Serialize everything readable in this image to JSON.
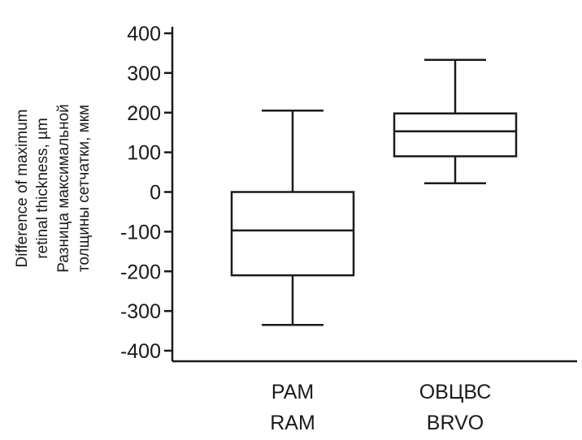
{
  "chart_data": {
    "type": "box",
    "ylabel_lines": [
      "Difference of maximum",
      "retinal thickness, µm",
      "Разница максимальной",
      "толщины сетчатки, мкм"
    ],
    "ylim": [
      -420,
      420
    ],
    "yticks": [
      400,
      300,
      200,
      100,
      0,
      -100,
      -200,
      -300,
      -400
    ],
    "ytick_labels": [
      "400",
      "300",
      "200",
      "100",
      "0",
      "-100",
      "-200",
      "-300",
      "-400"
    ],
    "categories": [
      {
        "lines": [
          "РАМ",
          "RAM"
        ],
        "min": -335,
        "q1": -210,
        "median": -97,
        "q3": 0,
        "max": 205
      },
      {
        "lines": [
          "ОВЦВС",
          "BRVO"
        ],
        "min": 22,
        "q1": 90,
        "median": 153,
        "q3": 198,
        "max": 333
      }
    ],
    "grid": false,
    "colors": {
      "stroke": "#1a1a1a",
      "background": "#ffffff"
    }
  }
}
